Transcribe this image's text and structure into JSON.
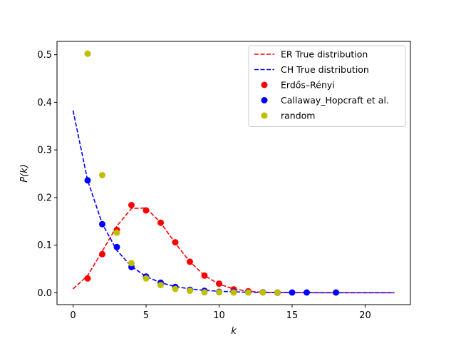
{
  "chart_data": {
    "type": "scatter",
    "xlabel": "k",
    "ylabel": "P(k)",
    "xlim": [
      -1.1,
      23.1
    ],
    "ylim": [
      -0.025,
      0.528
    ],
    "xticks": [
      0,
      5,
      10,
      15,
      20
    ],
    "xtick_labels": [
      "0",
      "5",
      "10",
      "15",
      "20"
    ],
    "yticks": [
      0.0,
      0.1,
      0.2,
      0.3,
      0.4,
      0.5
    ],
    "ytick_labels": [
      "0.0",
      "0.1",
      "0.2",
      "0.3",
      "0.4",
      "0.5"
    ],
    "grid": false,
    "legend_position": "top-right",
    "lines": [
      {
        "name": "ER True distribution",
        "color": "#ff0000",
        "style": "dashed",
        "x": [
          0,
          1,
          2,
          3,
          4,
          5,
          6,
          7,
          8,
          9,
          10,
          11,
          12,
          13,
          14,
          15,
          16,
          17,
          18,
          19,
          20,
          21,
          22
        ],
        "y": [
          0.008,
          0.036,
          0.087,
          0.14,
          0.177,
          0.178,
          0.147,
          0.104,
          0.065,
          0.036,
          0.018,
          0.008,
          0.003,
          0.001,
          0.0004,
          0.0001,
          0.0,
          0.0,
          0.0,
          0.0,
          0.0,
          0.0,
          0.0
        ]
      },
      {
        "name": "CH True distribution",
        "color": "#0000ff",
        "style": "dashed",
        "x": [
          0,
          1,
          2,
          3,
          4,
          5,
          6,
          7,
          8,
          9,
          10,
          11,
          12,
          13,
          14,
          15,
          16,
          17,
          18,
          19,
          20,
          21,
          22
        ],
        "y": [
          0.383,
          0.236,
          0.145,
          0.089,
          0.055,
          0.034,
          0.021,
          0.013,
          0.008,
          0.005,
          0.003,
          0.002,
          0.001,
          0.0007,
          0.0004,
          0.0003,
          0.0002,
          0.0001,
          0.0001,
          0.0,
          0.0,
          0.0,
          0.0
        ]
      }
    ],
    "series": [
      {
        "name": "Erdős–Rényi",
        "color": "#ff0000",
        "x": [
          1,
          2,
          3,
          4,
          5,
          6,
          7,
          8,
          9,
          10,
          11,
          12,
          13,
          14
        ],
        "y": [
          0.03,
          0.081,
          0.132,
          0.184,
          0.173,
          0.147,
          0.106,
          0.065,
          0.036,
          0.019,
          0.007,
          0.003,
          0.001,
          0.0
        ]
      },
      {
        "name": "Callaway_Hopcraft et al.",
        "color": "#0000ff",
        "x": [
          1,
          2,
          3,
          4,
          5,
          6,
          7,
          8,
          9,
          10,
          11,
          12,
          13,
          14,
          15,
          16,
          18
        ],
        "y": [
          0.236,
          0.144,
          0.096,
          0.054,
          0.034,
          0.021,
          0.012,
          0.006,
          0.004,
          0.002,
          0.002,
          0.001,
          0.001,
          0.0005,
          0.0005,
          0.0005,
          0.0005
        ]
      },
      {
        "name": "random",
        "color": "#bfbf00",
        "x": [
          1,
          2,
          3,
          4,
          5,
          6,
          7,
          8,
          9,
          10,
          11,
          12,
          13,
          14
        ],
        "y": [
          0.502,
          0.247,
          0.126,
          0.062,
          0.03,
          0.016,
          0.008,
          0.004,
          0.001,
          0.001,
          0.0005,
          0.0005,
          0.0005,
          0.0005
        ]
      }
    ]
  }
}
